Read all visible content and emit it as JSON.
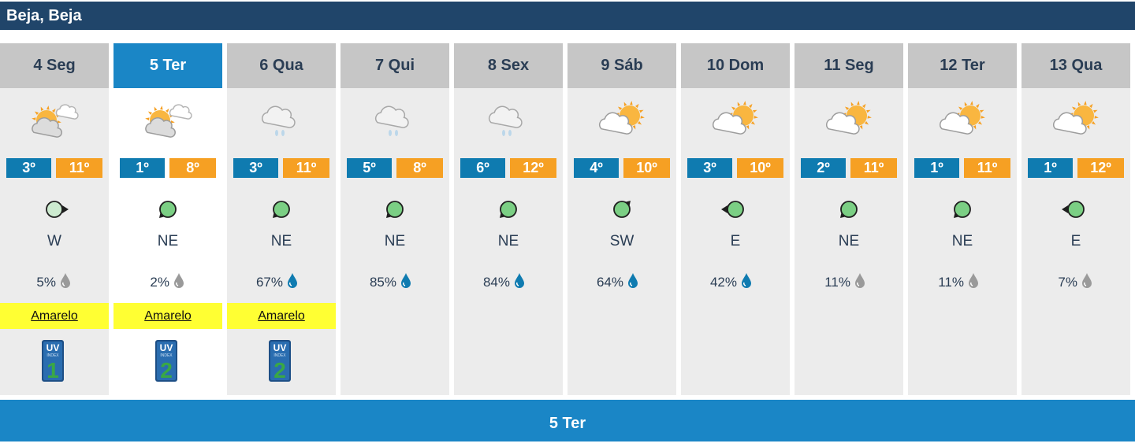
{
  "location": "Beja, Beja",
  "selected_label": "5 Ter",
  "colors": {
    "titlebar": "#20456a",
    "selected": "#1a86c6",
    "min": "#0f7bb0",
    "max": "#f6a023",
    "warning": "#ffff33",
    "wind_green": "#7bcf84",
    "wind_light": "#cdebd0"
  },
  "days": [
    {
      "label": "4 Seg",
      "icon": "sun-cloud-drizzle-icon",
      "tmin": "3º",
      "tmax": "11º",
      "wind_icon": "wind-arrow-east-icon",
      "wind": "W",
      "precip": "5%",
      "drop": "drop-grey-icon",
      "warning": "Amarelo",
      "uv": "1",
      "uv_label": "UV",
      "uv_sub": "INDEX"
    },
    {
      "label": "5 Ter",
      "icon": "sun-cloud-drizzle-icon",
      "tmin": "1º",
      "tmax": "8º",
      "wind_icon": "wind-arrow-southwest-icon",
      "wind": "NE",
      "precip": "2%",
      "drop": "drop-grey-icon",
      "warning": "Amarelo",
      "uv": "2",
      "uv_label": "UV",
      "uv_sub": "INDEX"
    },
    {
      "label": "6 Qua",
      "icon": "cloud-rain-icon",
      "tmin": "3º",
      "tmax": "11º",
      "wind_icon": "wind-arrow-southwest-icon",
      "wind": "NE",
      "precip": "67%",
      "drop": "drop-blue-icon",
      "warning": "Amarelo",
      "uv": "2",
      "uv_label": "UV",
      "uv_sub": "INDEX"
    },
    {
      "label": "7 Qui",
      "icon": "cloud-rain-icon",
      "tmin": "5º",
      "tmax": "8º",
      "wind_icon": "wind-arrow-southwest-icon",
      "wind": "NE",
      "precip": "85%",
      "drop": "drop-blue-icon"
    },
    {
      "label": "8 Sex",
      "icon": "cloud-rain-icon",
      "tmin": "6º",
      "tmax": "12º",
      "wind_icon": "wind-arrow-southwest-icon",
      "wind": "NE",
      "precip": "84%",
      "drop": "drop-blue-icon"
    },
    {
      "label": "9 Sáb",
      "icon": "sun-cloud-icon",
      "tmin": "4º",
      "tmax": "10º",
      "wind_icon": "wind-arrow-northeast-icon",
      "wind": "SW",
      "precip": "64%",
      "drop": "drop-blue-icon"
    },
    {
      "label": "10 Dom",
      "icon": "sun-cloud-icon",
      "tmin": "3º",
      "tmax": "10º",
      "wind_icon": "wind-arrow-west-icon",
      "wind": "E",
      "precip": "42%",
      "drop": "drop-blue-icon"
    },
    {
      "label": "11 Seg",
      "icon": "sun-cloud-icon",
      "tmin": "2º",
      "tmax": "11º",
      "wind_icon": "wind-arrow-southwest-icon",
      "wind": "NE",
      "precip": "11%",
      "drop": "drop-grey-icon"
    },
    {
      "label": "12 Ter",
      "icon": "sun-cloud-icon",
      "tmin": "1º",
      "tmax": "11º",
      "wind_icon": "wind-arrow-southwest-icon",
      "wind": "NE",
      "precip": "11%",
      "drop": "drop-grey-icon"
    },
    {
      "label": "13 Qua",
      "icon": "sun-cloud-icon",
      "tmin": "1º",
      "tmax": "12º",
      "wind_icon": "wind-arrow-west-icon",
      "wind": "E",
      "precip": "7%",
      "drop": "drop-grey-icon"
    }
  ]
}
